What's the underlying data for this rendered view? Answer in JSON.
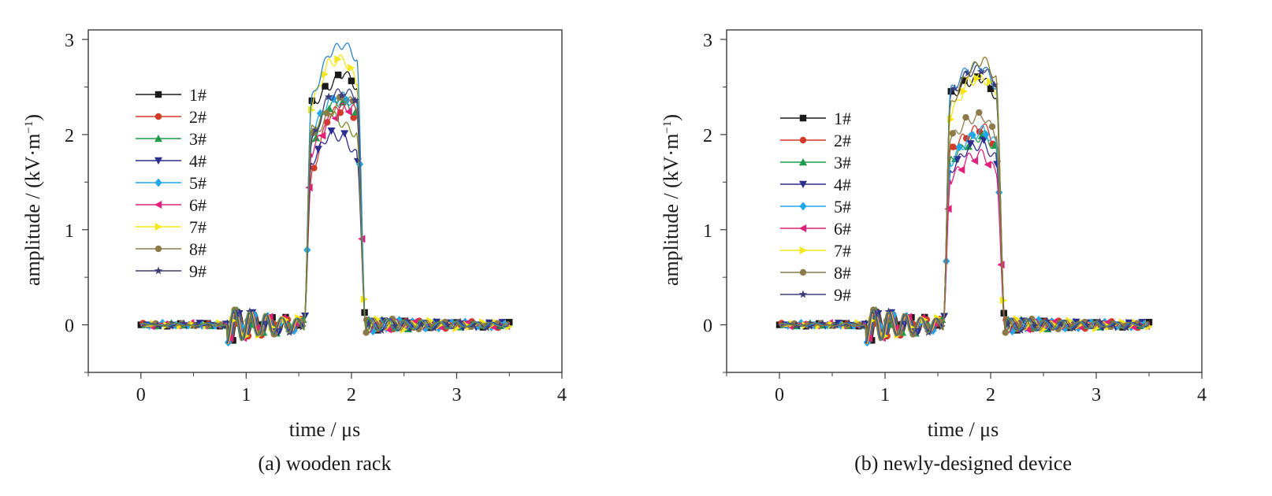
{
  "chart_data": [
    {
      "type": "line",
      "panel_id": "a",
      "caption": "(a) wooden rack",
      "xlabel": "time / μs",
      "ylabel": "amplitude / (kV·m",
      "ylabel_sup": "−1",
      "ylabel_close": ")",
      "xlim": [
        -0.5,
        4
      ],
      "ylim": [
        -0.5,
        3.1
      ],
      "xticks": [
        0,
        1,
        2,
        3,
        4
      ],
      "yticks": [
        0,
        1,
        2,
        3
      ],
      "legend_position": "upper-left",
      "series": [
        {
          "name": "1#",
          "color": "#1a1a1a",
          "marker": "square",
          "plateau": [
            2.3,
            2.5,
            2.66,
            2.5
          ]
        },
        {
          "name": "2#",
          "color": "#d23a2a",
          "marker": "circle",
          "plateau": [
            1.55,
            2.2,
            2.3,
            2.2
          ]
        },
        {
          "name": "3#",
          "color": "#1f9a4a",
          "marker": "triangle-up",
          "plateau": [
            1.9,
            2.3,
            2.35,
            2.2
          ]
        },
        {
          "name": "4#",
          "color": "#2b2d8f",
          "marker": "triangle-down",
          "plateau": [
            1.7,
            2.0,
            1.97,
            1.78
          ]
        },
        {
          "name": "5#",
          "color": "#21a6e8",
          "marker": "diamond",
          "plateau": [
            2.0,
            2.35,
            2.4,
            2.3
          ]
        },
        {
          "name": "6#",
          "color": "#e0207a",
          "marker": "triangle-left",
          "plateau": [
            1.8,
            2.15,
            2.3,
            2.25
          ]
        },
        {
          "name": "7#",
          "color": "#f3e61a",
          "marker": "triangle-right",
          "plateau": [
            2.3,
            2.75,
            2.8,
            2.55
          ]
        },
        {
          "name": "8#",
          "color": "#8c7a4a",
          "marker": "circle",
          "plateau": [
            1.95,
            2.2,
            2.4,
            2.3
          ]
        },
        {
          "name": "9#",
          "color": "#3d3d7a",
          "marker": "star",
          "plateau": [
            1.9,
            2.4,
            2.45,
            2.4
          ]
        }
      ],
      "extra_lines": [
        {
          "color": "#2e86c9",
          "plateau": [
            2.35,
            2.85,
            2.96,
            2.8
          ]
        },
        {
          "color": "#7a8a2a",
          "plateau": [
            2.05,
            2.25,
            2.1,
            2.0
          ]
        }
      ]
    },
    {
      "type": "line",
      "panel_id": "b",
      "caption": "(b) newly-designed device",
      "xlabel": "time / μs",
      "ylabel": "amplitude / (kV·m",
      "ylabel_sup": "−1",
      "ylabel_close": ")",
      "xlim": [
        -0.5,
        4
      ],
      "ylim": [
        -0.5,
        3.1
      ],
      "xticks": [
        0,
        1,
        2,
        3,
        4
      ],
      "yticks": [
        0,
        1,
        2,
        3
      ],
      "legend_position": "upper-left",
      "series": [
        {
          "name": "1#",
          "color": "#1a1a1a",
          "marker": "square",
          "plateau": [
            2.4,
            2.55,
            2.6,
            2.4
          ]
        },
        {
          "name": "2#",
          "color": "#d23a2a",
          "marker": "circle",
          "plateau": [
            1.85,
            2.0,
            2.1,
            1.9
          ]
        },
        {
          "name": "3#",
          "color": "#1f9a4a",
          "marker": "triangle-up",
          "plateau": [
            1.75,
            1.9,
            2.0,
            1.85
          ]
        },
        {
          "name": "4#",
          "color": "#2b2d8f",
          "marker": "triangle-down",
          "plateau": [
            1.62,
            1.85,
            1.9,
            1.75
          ]
        },
        {
          "name": "5#",
          "color": "#21a6e8",
          "marker": "diamond",
          "plateau": [
            1.7,
            1.95,
            2.05,
            1.9
          ]
        },
        {
          "name": "6#",
          "color": "#e0207a",
          "marker": "triangle-left",
          "plateau": [
            1.52,
            1.75,
            1.8,
            1.6
          ]
        },
        {
          "name": "7#",
          "color": "#f3e61a",
          "marker": "triangle-right",
          "plateau": [
            2.2,
            2.55,
            2.6,
            2.45
          ]
        },
        {
          "name": "8#",
          "color": "#8c7a4a",
          "marker": "circle",
          "plateau": [
            1.95,
            2.15,
            2.2,
            2.0
          ]
        },
        {
          "name": "9#",
          "color": "#3d3d7a",
          "marker": "star",
          "plateau": [
            2.4,
            2.65,
            2.7,
            2.55
          ]
        }
      ],
      "extra_lines": [
        {
          "color": "#2e86c9",
          "plateau": [
            2.45,
            2.7,
            2.72,
            2.5
          ]
        },
        {
          "color": "#8c7a2a",
          "plateau": [
            2.3,
            2.65,
            2.8,
            2.6
          ]
        }
      ]
    }
  ]
}
